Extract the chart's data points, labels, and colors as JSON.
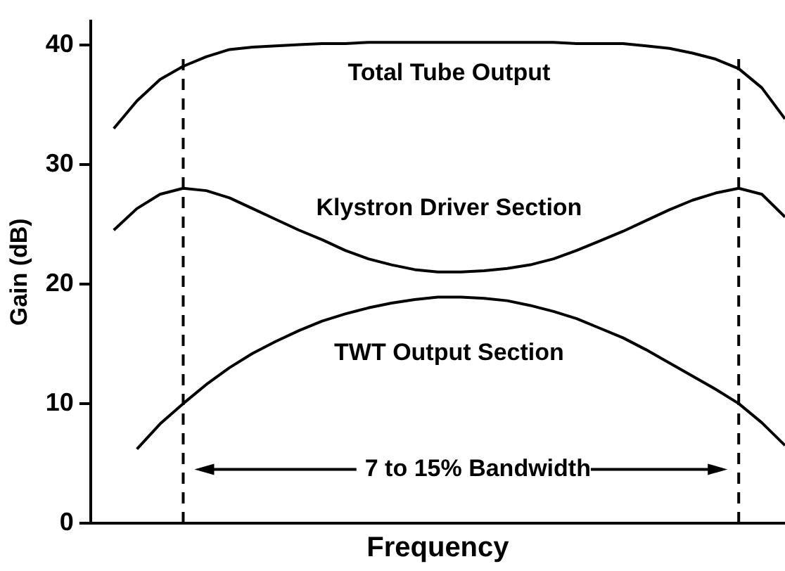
{
  "chart_data": {
    "type": "line",
    "xlabel": "Frequency",
    "ylabel": "Gain (dB)",
    "ylim": [
      0,
      42
    ],
    "yticks": [
      0,
      10,
      20,
      30,
      40
    ],
    "tick_labels": "y",
    "grid": false,
    "legend": false,
    "marker": "none",
    "line_style": "solid",
    "categories": [
      null,
      null,
      null,
      null,
      null,
      null,
      null,
      null,
      null,
      null,
      null,
      null,
      null,
      null,
      null,
      null,
      null,
      null,
      null,
      null,
      null,
      null,
      null,
      null,
      null,
      null,
      null,
      null,
      null,
      null,
      null
    ],
    "series": [
      {
        "name": "Total Tube Output",
        "color": "#000000",
        "values": [
          null,
          33.0,
          35.3,
          37.1,
          38.2,
          39.0,
          39.6,
          39.8,
          39.9,
          40.0,
          40.1,
          40.1,
          40.2,
          40.2,
          40.2,
          40.2,
          40.2,
          40.2,
          40.2,
          40.2,
          40.2,
          40.1,
          40.1,
          40.1,
          39.9,
          39.7,
          39.3,
          38.8,
          38.0,
          36.4,
          33.8
        ]
      },
      {
        "name": "Klystron Driver Section",
        "color": "#000000",
        "values": [
          null,
          24.5,
          26.3,
          27.5,
          28.0,
          27.8,
          27.2,
          26.3,
          25.4,
          24.5,
          23.7,
          22.8,
          22.1,
          21.6,
          21.2,
          21.0,
          21.0,
          21.1,
          21.3,
          21.6,
          22.1,
          22.8,
          23.6,
          24.4,
          25.3,
          26.2,
          27.0,
          27.6,
          28.0,
          27.5,
          25.6
        ]
      },
      {
        "name": "TWT Output Section",
        "color": "#000000",
        "values": [
          null,
          null,
          6.2,
          8.3,
          10.0,
          11.6,
          13.0,
          14.2,
          15.2,
          16.1,
          16.9,
          17.5,
          18.0,
          18.4,
          18.7,
          18.9,
          18.9,
          18.8,
          18.6,
          18.2,
          17.7,
          17.1,
          16.3,
          15.5,
          14.5,
          13.4,
          12.3,
          11.2,
          10.0,
          8.4,
          6.5
        ]
      }
    ],
    "annotations": [
      "7 to 15% Bandwidth"
    ]
  }
}
